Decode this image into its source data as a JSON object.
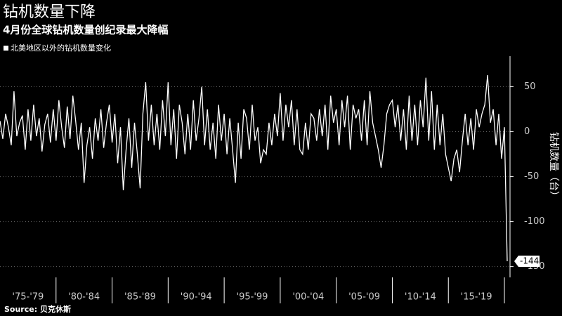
{
  "chart_data": {
    "type": "line",
    "title": "钻机数量下降",
    "subtitle": "4月份全球钻机数量创纪录最大降幅",
    "y_label": "钻机数量（台）",
    "source": "Source: 贝克休斯",
    "xlim": [
      1975,
      2020.5
    ],
    "ylim": [
      -162,
      84
    ],
    "yticks": [
      50,
      0,
      -50,
      -100,
      -150
    ],
    "xticks": [
      {
        "value": 1977.5,
        "label": "'75-'79"
      },
      {
        "value": 1982.5,
        "label": "'80-'84"
      },
      {
        "value": 1987.5,
        "label": "'85-'89"
      },
      {
        "value": 1992.5,
        "label": "'90-'94"
      },
      {
        "value": 1997.5,
        "label": "'95-'99"
      },
      {
        "value": 2002.5,
        "label": "'00-'04"
      },
      {
        "value": 2007.5,
        "label": "'05-'09"
      },
      {
        "value": 2012.5,
        "label": "'10-'14"
      },
      {
        "value": 2017.5,
        "label": "'15-'19"
      }
    ],
    "grid": true,
    "x": [
      1975,
      1975.25,
      1975.5,
      1975.75,
      1976,
      1976.25,
      1976.5,
      1976.75,
      1977,
      1977.25,
      1977.5,
      1977.75,
      1978,
      1978.25,
      1978.5,
      1978.75,
      1979,
      1979.25,
      1979.5,
      1979.75,
      1980,
      1980.25,
      1980.5,
      1980.75,
      1981,
      1981.25,
      1981.5,
      1981.75,
      1982,
      1982.25,
      1982.5,
      1982.75,
      1983,
      1983.25,
      1983.5,
      1983.75,
      1984,
      1984.25,
      1984.5,
      1984.75,
      1985,
      1985.25,
      1985.5,
      1985.75,
      1986,
      1986.25,
      1986.5,
      1986.75,
      1987,
      1987.25,
      1987.5,
      1987.75,
      1988,
      1988.25,
      1988.5,
      1988.75,
      1989,
      1989.25,
      1989.5,
      1989.75,
      1990,
      1990.25,
      1990.5,
      1990.75,
      1991,
      1991.25,
      1991.5,
      1991.75,
      1992,
      1992.25,
      1992.5,
      1992.75,
      1993,
      1993.25,
      1993.5,
      1993.75,
      1994,
      1994.25,
      1994.5,
      1994.75,
      1995,
      1995.25,
      1995.5,
      1995.75,
      1996,
      1996.25,
      1996.5,
      1996.75,
      1997,
      1997.25,
      1997.5,
      1997.75,
      1998,
      1998.25,
      1998.5,
      1998.75,
      1999,
      1999.25,
      1999.5,
      1999.75,
      2000,
      2000.25,
      2000.5,
      2000.75,
      2001,
      2001.25,
      2001.5,
      2001.75,
      2002,
      2002.25,
      2002.5,
      2002.75,
      2003,
      2003.25,
      2003.5,
      2003.75,
      2004,
      2004.25,
      2004.5,
      2004.75,
      2005,
      2005.25,
      2005.5,
      2005.75,
      2006,
      2006.25,
      2006.5,
      2006.75,
      2007,
      2007.25,
      2007.5,
      2007.75,
      2008,
      2008.25,
      2008.5,
      2008.75,
      2009,
      2009.25,
      2009.5,
      2009.75,
      2010,
      2010.25,
      2010.5,
      2010.75,
      2011,
      2011.25,
      2011.5,
      2011.75,
      2012,
      2012.25,
      2012.5,
      2012.75,
      2013,
      2013.25,
      2013.5,
      2013.75,
      2014,
      2014.25,
      2014.5,
      2014.75,
      2015,
      2015.25,
      2015.5,
      2015.75,
      2016,
      2016.25,
      2016.5,
      2016.75,
      2017,
      2017.25,
      2017.5,
      2017.75,
      2018,
      2018.25,
      2018.5,
      2018.75,
      2019,
      2019.25,
      2019.5,
      2019.75,
      2020,
      2020.25
    ],
    "series": [
      {
        "name": "北美地区以外的钻机数量变化",
        "color": "#ffffff",
        "values": [
          12,
          -8,
          20,
          5,
          -15,
          45,
          -5,
          10,
          18,
          -20,
          25,
          -10,
          30,
          -5,
          15,
          -22,
          8,
          20,
          -12,
          25,
          -10,
          35,
          5,
          -18,
          28,
          -8,
          40,
          12,
          -20,
          10,
          -57,
          -15,
          5,
          -30,
          15,
          -10,
          25,
          -18,
          10,
          30,
          -12,
          20,
          -35,
          5,
          -65,
          -20,
          15,
          -40,
          10,
          -25,
          -63,
          20,
          55,
          -10,
          30,
          -15,
          20,
          -20,
          35,
          -5,
          55,
          -15,
          25,
          -30,
          30,
          10,
          -25,
          20,
          -20,
          35,
          -10,
          15,
          50,
          -15,
          25,
          -20,
          10,
          -30,
          30,
          -10,
          20,
          -25,
          15,
          -20,
          -57,
          10,
          -30,
          25,
          15,
          -20,
          30,
          -10,
          5,
          -35,
          -20,
          -25,
          10,
          -15,
          20,
          -5,
          43,
          -10,
          30,
          5,
          35,
          -15,
          25,
          -20,
          -25,
          10,
          -20,
          20,
          15,
          -10,
          25,
          -5,
          30,
          -20,
          40,
          10,
          25,
          -15,
          35,
          5,
          40,
          -20,
          30,
          15,
          25,
          -10,
          35,
          -15,
          45,
          10,
          -5,
          -20,
          -40,
          -15,
          20,
          30,
          35,
          5,
          30,
          -10,
          25,
          -20,
          40,
          -10,
          30,
          -15,
          35,
          5,
          60,
          -10,
          45,
          -20,
          30,
          -15,
          20,
          -25,
          -40,
          -55,
          -30,
          -20,
          -45,
          -10,
          20,
          -15,
          15,
          -20,
          25,
          5,
          20,
          30,
          63,
          10,
          25,
          -15,
          20,
          -30,
          5,
          -144
        ],
        "value_labels": [
          null,
          null,
          null,
          null,
          null,
          null,
          null,
          null,
          null,
          null,
          null,
          null,
          null,
          null,
          null,
          null,
          null,
          null,
          null,
          null,
          null,
          null,
          null,
          null,
          null,
          null,
          null,
          null,
          null,
          null,
          null,
          null,
          null,
          null,
          null,
          null,
          null,
          null,
          null,
          null,
          null,
          null,
          null,
          null,
          null,
          null,
          null,
          null,
          null,
          null,
          null,
          null,
          null,
          null,
          null,
          null,
          null,
          null,
          null,
          null,
          null,
          null,
          null,
          null,
          null,
          null,
          null,
          null,
          null,
          null,
          null,
          null,
          null,
          null,
          null,
          null,
          null,
          null,
          null,
          null,
          null,
          null,
          null,
          null,
          null,
          null,
          null,
          null,
          null,
          null,
          null,
          null,
          null,
          null,
          null,
          null,
          null,
          null,
          null,
          null,
          null,
          null,
          null,
          null,
          null,
          null,
          null,
          null,
          null,
          null,
          null,
          null,
          null,
          null,
          null,
          null,
          null,
          null,
          null,
          null,
          null,
          null,
          null,
          null,
          null,
          null,
          null,
          null,
          null,
          null,
          null,
          null,
          null,
          null,
          null,
          null,
          null,
          null,
          null,
          null,
          null,
          null,
          null,
          null,
          null,
          null,
          null,
          null,
          null,
          null,
          null,
          null,
          null,
          null,
          null,
          null,
          null,
          null,
          null,
          null,
          null,
          null,
          null,
          null,
          null,
          null,
          null,
          null,
          null,
          null,
          null,
          null,
          null,
          null,
          null,
          null,
          null,
          null,
          null,
          null,
          null,
          "-144"
        ]
      }
    ]
  }
}
